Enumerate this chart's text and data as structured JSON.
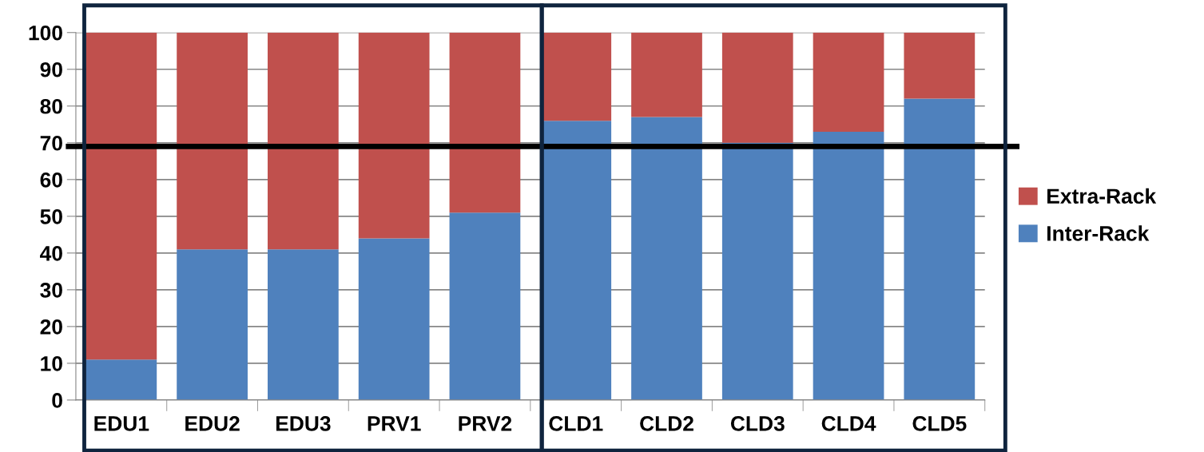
{
  "chart_data": {
    "type": "bar",
    "stacked": true,
    "categories": [
      "EDU1",
      "EDU2",
      "EDU3",
      "PRV1",
      "PRV2",
      "CLD1",
      "CLD2",
      "CLD3",
      "CLD4",
      "CLD5"
    ],
    "series": [
      {
        "name": "Inter-Rack",
        "color": "#4f81bd",
        "values": [
          11,
          41,
          41,
          44,
          51,
          76,
          77,
          70,
          73,
          82
        ]
      },
      {
        "name": "Extra-Rack",
        "color": "#c0504d",
        "values": [
          89,
          59,
          59,
          56,
          49,
          24,
          23,
          30,
          27,
          18
        ]
      }
    ],
    "ylim": [
      0,
      100
    ],
    "yticks": [
      0,
      10,
      20,
      30,
      40,
      50,
      60,
      70,
      80,
      90,
      100
    ],
    "grid": "y",
    "legend": "right",
    "ref_lines": [
      {
        "axis": "y",
        "value": 69,
        "color": "#000000"
      }
    ]
  }
}
